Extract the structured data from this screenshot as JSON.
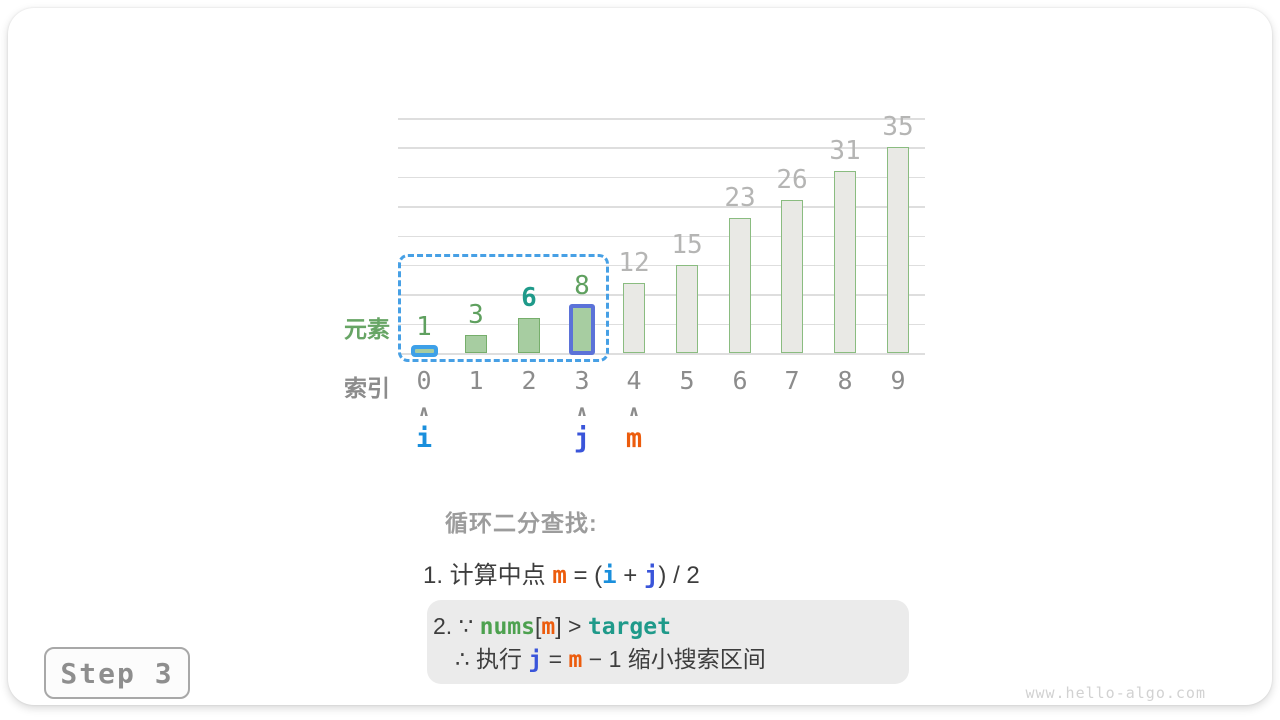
{
  "watermark": "www.hello-algo.com",
  "step_badge": "Step 3",
  "axis": {
    "element_label": "元素",
    "index_label": "索引"
  },
  "chart_data": {
    "type": "bar",
    "title": "",
    "xlabel": "索引",
    "ylabel": "元素",
    "categories": [
      "0",
      "1",
      "2",
      "3",
      "4",
      "5",
      "6",
      "7",
      "8",
      "9"
    ],
    "values": [
      1,
      3,
      6,
      8,
      12,
      15,
      23,
      26,
      31,
      35
    ],
    "ylim": [
      0,
      40
    ],
    "grid_step": 5,
    "grid": "on",
    "target_value": 6,
    "search_range": {
      "start_index": 0,
      "end_index": 3
    },
    "pointers": [
      {
        "name": "i",
        "index": 0
      },
      {
        "name": "j",
        "index": 3
      },
      {
        "name": "m",
        "index": 4
      }
    ],
    "bars": [
      {
        "index": 0,
        "value": 1,
        "in_search_range": true,
        "pointer_highlight": "i",
        "label_style": "green"
      },
      {
        "index": 1,
        "value": 3,
        "in_search_range": true,
        "pointer_highlight": null,
        "label_style": "green"
      },
      {
        "index": 2,
        "value": 6,
        "in_search_range": true,
        "pointer_highlight": null,
        "label_style": "target"
      },
      {
        "index": 3,
        "value": 8,
        "in_search_range": true,
        "pointer_highlight": "j",
        "label_style": "green"
      },
      {
        "index": 4,
        "value": 12,
        "in_search_range": false,
        "pointer_highlight": null,
        "label_style": "gray"
      },
      {
        "index": 5,
        "value": 15,
        "in_search_range": false,
        "pointer_highlight": null,
        "label_style": "gray"
      },
      {
        "index": 6,
        "value": 23,
        "in_search_range": false,
        "pointer_highlight": null,
        "label_style": "gray"
      },
      {
        "index": 7,
        "value": 26,
        "in_search_range": false,
        "pointer_highlight": null,
        "label_style": "gray"
      },
      {
        "index": 8,
        "value": 31,
        "in_search_range": false,
        "pointer_highlight": null,
        "label_style": "gray"
      },
      {
        "index": 9,
        "value": 35,
        "in_search_range": false,
        "pointer_highlight": null,
        "label_style": "gray"
      }
    ]
  },
  "caption": {
    "heading": "循环二分查找:",
    "line1": [
      {
        "t": "1. 计算中点 ",
        "s": "dark"
      },
      {
        "t": "m",
        "s": "m"
      },
      {
        "t": " = (",
        "s": "dark"
      },
      {
        "t": "i",
        "s": "i"
      },
      {
        "t": " + ",
        "s": "dark"
      },
      {
        "t": "j",
        "s": "j"
      },
      {
        "t": ") / 2",
        "s": "dark"
      }
    ],
    "box_line1": [
      {
        "t": "2. ∵ ",
        "s": "dark"
      },
      {
        "t": "nums",
        "s": "nums"
      },
      {
        "t": "[",
        "s": "dark"
      },
      {
        "t": "m",
        "s": "m"
      },
      {
        "t": "] > ",
        "s": "dark"
      },
      {
        "t": "target",
        "s": "target"
      }
    ],
    "box_line2": [
      {
        "t": "∴ 执行 ",
        "s": "dark"
      },
      {
        "t": "j",
        "s": "j"
      },
      {
        "t": " = ",
        "s": "dark"
      },
      {
        "t": "m",
        "s": "m"
      },
      {
        "t": " − 1 缩小搜索区间",
        "s": "dark"
      }
    ]
  },
  "colors": {
    "green_bar_fill": "#a7cda1",
    "green_bar_border": "#76ae6b",
    "gray_bar_fill": "#e9e9e5",
    "gray_bar_border": "#8abc80",
    "grid_line": "#dedede",
    "value_green": "#5fa05f",
    "value_target": "#1f9a8a",
    "value_gray": "#b5b5b4",
    "index_gray": "#8c8c8c",
    "arrow_gray": "#8c8c8c",
    "pointer_i": "#1a8fdc",
    "pointer_j": "#3a55da",
    "pointer_m": "#ec5c0d",
    "nums_green": "#4da14f",
    "text_dark": "#3d3d3d",
    "heading_gray": "#9c9c9c",
    "range_dash": "#47a0e5",
    "i_highlight": "#3da0e8",
    "j_highlight": "#5b72d8",
    "element_label": "#67a565",
    "box_bg": "#ebebeb",
    "step_border": "#a8a8a8",
    "step_text": "#8e8e8e",
    "watermark": "#d2d2d2"
  }
}
